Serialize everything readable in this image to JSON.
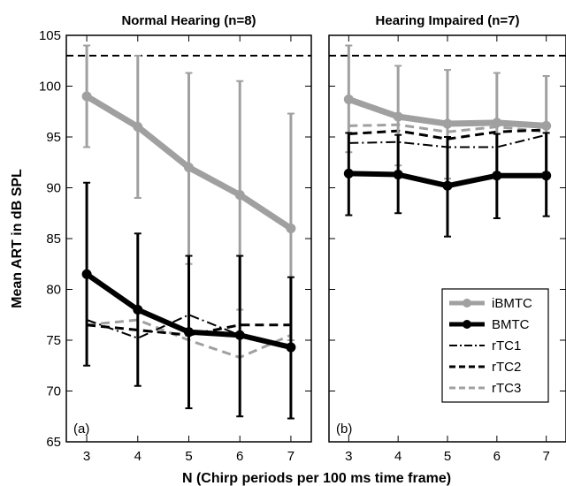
{
  "chart_data": {
    "type": "line",
    "xlabel": "N (Chirp periods per 100 ms time frame)",
    "ylabel": "Mean ART in dB SPL",
    "ylim": [
      65,
      105
    ],
    "xlim": [
      2.6,
      7.4
    ],
    "x_ticks": [
      "3",
      "4",
      "5",
      "6",
      "7"
    ],
    "y_ticks": [
      "65",
      "70",
      "75",
      "80",
      "85",
      "90",
      "95",
      "100",
      "105"
    ],
    "reference_line": 103,
    "grid": false,
    "legend_location": "lower-right",
    "legend": [
      {
        "name": "iBMTC",
        "color": "#a0a0a0",
        "dash": "solid",
        "marker": true,
        "width": 7
      },
      {
        "name": "BMTC",
        "color": "#000000",
        "dash": "solid",
        "marker": true,
        "width": 6
      },
      {
        "name": "rTC1",
        "color": "#000000",
        "dash": "dashdot",
        "marker": false,
        "width": 2
      },
      {
        "name": "rTC2",
        "color": "#000000",
        "dash": "dashed",
        "marker": false,
        "width": 3
      },
      {
        "name": "rTC3",
        "color": "#a0a0a0",
        "dash": "dashed",
        "marker": false,
        "width": 3
      }
    ],
    "panels": [
      {
        "title": "Normal Hearing  (n=8)",
        "label": "(a)",
        "x": [
          3,
          4,
          5,
          6,
          7
        ],
        "series": [
          {
            "name": "iBMTC",
            "values": [
              99,
              96,
              92,
              89.3,
              86
            ],
            "err_low": [
              94,
              89,
              82.5,
              78,
              75
            ],
            "err_high": [
              104,
              103,
              101.3,
              100.5,
              97.3
            ]
          },
          {
            "name": "BMTC",
            "values": [
              81.5,
              78,
              75.8,
              75.5,
              74.3
            ],
            "err_low": [
              72.5,
              70.5,
              68.3,
              67.5,
              67.3
            ],
            "err_high": [
              90.5,
              85.5,
              83.3,
              83.3,
              81.2
            ]
          },
          {
            "name": "rTC1",
            "values": [
              77,
              75.2,
              77.5,
              75.5,
              74.5
            ]
          },
          {
            "name": "rTC2",
            "values": [
              76.5,
              76,
              75.5,
              76.5,
              76.5
            ]
          },
          {
            "name": "rTC3",
            "values": [
              76.5,
              77,
              75,
              73.3,
              75.5
            ]
          }
        ]
      },
      {
        "title": "Hearing Impaired (n=7)",
        "label": "(b)",
        "x": [
          3,
          4,
          5,
          6,
          7
        ],
        "series": [
          {
            "name": "iBMTC",
            "values": [
              98.7,
              97,
              96.3,
              96.4,
              96.1
            ],
            "err_low": [
              93.5,
              92.2,
              90.9,
              91.5,
              91.5
            ],
            "err_high": [
              104,
              102,
              101.6,
              101.3,
              101
            ]
          },
          {
            "name": "BMTC",
            "values": [
              91.4,
              91.3,
              90.2,
              91.2,
              91.2
            ],
            "err_low": [
              87.3,
              87.5,
              85.2,
              87,
              87.2
            ],
            "err_high": [
              95.4,
              95.2,
              95,
              95.3,
              95.4
            ]
          },
          {
            "name": "rTC1",
            "values": [
              94.4,
              94.5,
              94,
              94,
              95.2
            ]
          },
          {
            "name": "rTC2",
            "values": [
              95.3,
              95.6,
              94.8,
              95.5,
              95.7
            ]
          },
          {
            "name": "rTC3",
            "values": [
              96.1,
              96.2,
              95.5,
              96,
              95.5
            ]
          }
        ]
      }
    ]
  }
}
